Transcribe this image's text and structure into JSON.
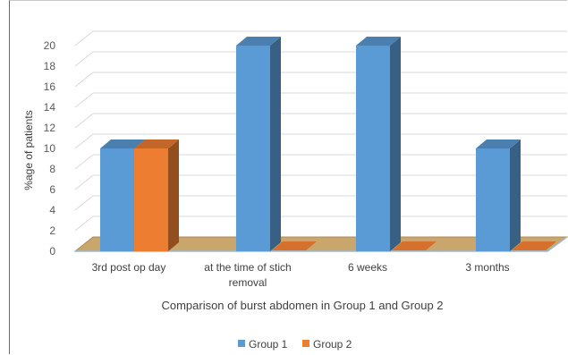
{
  "chart_data": {
    "type": "bar",
    "title": "",
    "xlabel": "Comparison of burst abdomen in Group 1 and Group 2",
    "ylabel": "%age of patients",
    "ylim": [
      0,
      20
    ],
    "yticks": [
      "0",
      "2",
      "4",
      "6",
      "8",
      "10",
      "12",
      "14",
      "16",
      "18",
      "20"
    ],
    "categories": [
      [
        "3rd post op day"
      ],
      [
        "at the time of stich",
        "removal"
      ],
      [
        "6 weeks"
      ],
      [
        "3 months"
      ]
    ],
    "series": [
      {
        "name": "Group 1",
        "values": [
          10,
          20,
          20,
          10
        ],
        "color": "#5B9BD5"
      },
      {
        "name": "Group 2",
        "values": [
          10,
          0,
          0,
          0
        ],
        "color": "#ED7D31"
      }
    ],
    "legend_position": "bottom",
    "grid": true,
    "floor_color": "#C9A66B",
    "style": "3d-clustered-column"
  }
}
